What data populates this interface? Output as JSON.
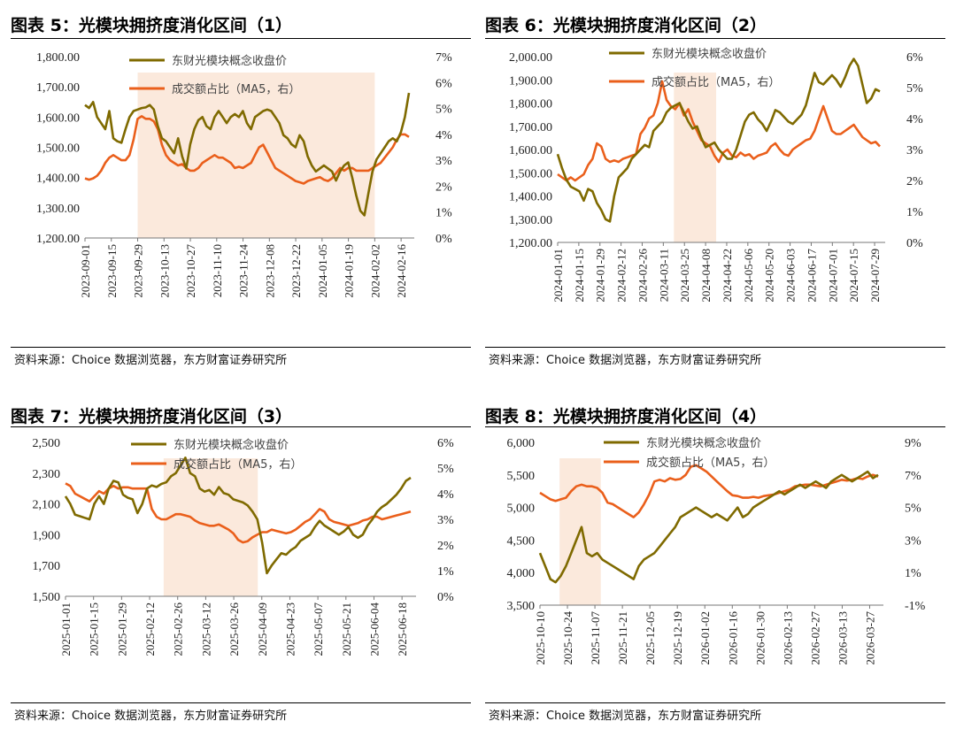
{
  "source": "资料来源：Choice 数据浏览器，东方财富证券研究所",
  "legend": {
    "price": "东财光模块概念收盘价",
    "turnover": "成交额占比（MA5，右）"
  },
  "colors": {
    "price": "#7f6a00",
    "turnover": "#ea5f1b",
    "shade": "#fbe9dc"
  },
  "chart_data": [
    {
      "type": "line",
      "title": "图表 5：光模块拥挤度消化区间（1）",
      "xlabels": [
        "2023-09-01",
        "2023-09-15",
        "2023-09-29",
        "2023-10-13",
        "2023-10-27",
        "2023-11-10",
        "2023-11-24",
        "2023-12-08",
        "2023-12-22",
        "2024-01-05",
        "2024-01-19",
        "2024-02-02",
        "2024-02-16"
      ],
      "ylim": [
        1200,
        1800
      ],
      "yticks": [
        "1,200.00",
        "1,300.00",
        "1,400.00",
        "1,500.00",
        "1,600.00",
        "1,700.00",
        "1,800.00"
      ],
      "y2lim": [
        0,
        7
      ],
      "y2ticks": [
        "0%",
        "1%",
        "2%",
        "3%",
        "4%",
        "5%",
        "6%",
        "7%"
      ],
      "shade": [
        "2023-09-29",
        "2024-02-02"
      ],
      "series": [
        {
          "name": "东财光模块概念收盘价",
          "axis": "left",
          "values": [
            1640,
            1630,
            1650,
            1600,
            1580,
            1560,
            1620,
            1530,
            1520,
            1515,
            1560,
            1600,
            1620,
            1625,
            1630,
            1632,
            1640,
            1625,
            1570,
            1530,
            1520,
            1500,
            1480,
            1530,
            1470,
            1430,
            1510,
            1560,
            1590,
            1600,
            1570,
            1560,
            1600,
            1620,
            1600,
            1580,
            1600,
            1610,
            1600,
            1620,
            1580,
            1560,
            1600,
            1610,
            1620,
            1625,
            1620,
            1600,
            1580,
            1540,
            1530,
            1510,
            1500,
            1540,
            1520,
            1470,
            1440,
            1420,
            1430,
            1440,
            1430,
            1420,
            1390,
            1420,
            1440,
            1450,
            1400,
            1340,
            1290,
            1275,
            1350,
            1420,
            1460,
            1480,
            1500,
            1520,
            1530,
            1520,
            1550,
            1600,
            1680
          ]
        },
        {
          "name": "成交额占比（MA5，右）",
          "axis": "right",
          "values": [
            2.3,
            2.25,
            2.3,
            2.4,
            2.6,
            2.9,
            3.1,
            3.2,
            3.1,
            3.0,
            3.0,
            3.2,
            3.8,
            4.6,
            4.7,
            4.6,
            4.6,
            4.5,
            4.2,
            3.6,
            3.2,
            3.0,
            2.9,
            2.8,
            2.85,
            2.7,
            2.6,
            2.6,
            2.7,
            2.9,
            3.0,
            3.1,
            3.2,
            3.1,
            3.1,
            3.0,
            2.9,
            2.7,
            2.75,
            2.7,
            2.8,
            2.9,
            3.2,
            3.5,
            3.6,
            3.3,
            3.0,
            2.7,
            2.6,
            2.5,
            2.4,
            2.3,
            2.2,
            2.15,
            2.1,
            2.2,
            2.25,
            2.3,
            2.35,
            2.25,
            2.2,
            2.3,
            2.5,
            2.7,
            2.6,
            2.7,
            2.7,
            2.6,
            2.6,
            2.6,
            2.6,
            2.7,
            2.8,
            2.9,
            3.1,
            3.3,
            3.5,
            3.8,
            4.0,
            4.0,
            3.9
          ]
        }
      ]
    },
    {
      "type": "line",
      "title": "图表 6：光模块拥挤度消化区间（2）",
      "xlabels": [
        "2024-01-01",
        "2024-01-15",
        "2024-01-29",
        "2024-02-12",
        "2024-02-26",
        "2024-03-11",
        "2024-03-25",
        "2024-04-08",
        "2024-04-22",
        "2024-05-06",
        "2024-05-20",
        "2024-06-03",
        "2024-06-17",
        "2024-07-01",
        "2024-07-15",
        "2024-07-29"
      ],
      "ylim": [
        1200,
        2000
      ],
      "yticks": [
        "1,200.00",
        "1,300.00",
        "1,400.00",
        "1,500.00",
        "1,600.00",
        "1,700.00",
        "1,800.00",
        "1,900.00",
        "2,000.00"
      ],
      "y2lim": [
        0,
        6
      ],
      "y2ticks": [
        "0%",
        "1%",
        "2%",
        "3%",
        "4%",
        "5%",
        "6%"
      ],
      "shade": [
        "2024-03-18",
        "2024-04-15"
      ],
      "series": [
        {
          "name": "东财光模块概念收盘价",
          "axis": "left",
          "values": [
            1580,
            1520,
            1470,
            1440,
            1430,
            1420,
            1380,
            1430,
            1420,
            1370,
            1340,
            1300,
            1290,
            1400,
            1480,
            1500,
            1520,
            1560,
            1580,
            1600,
            1620,
            1610,
            1680,
            1700,
            1720,
            1760,
            1780,
            1790,
            1800,
            1760,
            1720,
            1690,
            1700,
            1650,
            1610,
            1620,
            1630,
            1600,
            1580,
            1560,
            1560,
            1600,
            1660,
            1720,
            1750,
            1760,
            1730,
            1710,
            1680,
            1720,
            1770,
            1760,
            1740,
            1720,
            1710,
            1730,
            1750,
            1790,
            1860,
            1930,
            1890,
            1880,
            1900,
            1920,
            1900,
            1870,
            1910,
            1960,
            1990,
            1960,
            1880,
            1800,
            1820,
            1860,
            1850
          ]
        },
        {
          "name": "成交额占比（MA5，右）",
          "axis": "right",
          "values": [
            2.2,
            2.1,
            2.0,
            2.1,
            2.0,
            2.1,
            2.2,
            2.5,
            2.7,
            3.2,
            3.1,
            2.7,
            2.6,
            2.65,
            2.6,
            2.7,
            2.75,
            2.8,
            2.85,
            3.5,
            3.7,
            4.0,
            4.1,
            4.5,
            5.2,
            4.6,
            4.4,
            4.3,
            4.5,
            4.1,
            4.3,
            3.9,
            3.6,
            3.3,
            3.2,
            3.1,
            2.8,
            2.6,
            2.9,
            3.0,
            2.8,
            2.75,
            2.9,
            2.8,
            2.85,
            2.7,
            2.8,
            2.85,
            2.9,
            3.1,
            3.2,
            3.0,
            2.85,
            2.8,
            3.0,
            3.1,
            3.2,
            3.3,
            3.35,
            3.6,
            4.0,
            4.4,
            4.0,
            3.6,
            3.5,
            3.5,
            3.6,
            3.7,
            3.8,
            3.6,
            3.4,
            3.3,
            3.2,
            3.25,
            3.1
          ]
        }
      ]
    },
    {
      "type": "line",
      "title": "图表 7：光模块拥挤度消化区间（3）",
      "xlabels": [
        "2025-01-01",
        "2025-01-15",
        "2025-01-29",
        "2025-02-12",
        "2025-02-26",
        "2025-03-12",
        "2025-03-26",
        "2025-04-09",
        "2025-04-23",
        "2025-05-07",
        "2025-05-21",
        "2025-06-04",
        "2025-06-18"
      ],
      "ylim": [
        1500,
        2500
      ],
      "yticks": [
        "1,500",
        "1,700",
        "1,900",
        "2,100",
        "2,300",
        "2,500"
      ],
      "y2lim": [
        0,
        6
      ],
      "y2ticks": [
        "0%",
        "1%",
        "2%",
        "3%",
        "4%",
        "5%",
        "6%"
      ],
      "shade": [
        "2025-02-19",
        "2025-04-07"
      ],
      "series": [
        {
          "name": "东财光模块概念收盘价",
          "axis": "left",
          "values": [
            2150,
            2100,
            2030,
            2020,
            2010,
            2000,
            2100,
            2150,
            2100,
            2200,
            2250,
            2240,
            2160,
            2140,
            2130,
            2040,
            2100,
            2200,
            2220,
            2210,
            2230,
            2240,
            2280,
            2300,
            2350,
            2400,
            2300,
            2280,
            2200,
            2180,
            2190,
            2160,
            2210,
            2170,
            2160,
            2130,
            2120,
            2110,
            2090,
            2050,
            2000,
            1850,
            1650,
            1700,
            1740,
            1780,
            1770,
            1800,
            1820,
            1860,
            1880,
            1900,
            1950,
            1990,
            1960,
            1940,
            1920,
            1900,
            1920,
            1950,
            1900,
            1880,
            1900,
            1960,
            2000,
            2050,
            2080,
            2100,
            2130,
            2160,
            2200,
            2250,
            2270
          ]
        },
        {
          "name": "成交额占比（MA5，右）",
          "axis": "right",
          "values": [
            4.4,
            4.3,
            4.0,
            3.9,
            3.8,
            3.7,
            3.9,
            4.1,
            4.0,
            4.2,
            4.3,
            4.2,
            4.25,
            4.25,
            4.2,
            4.2,
            4.2,
            4.2,
            3.4,
            3.1,
            3.0,
            3.0,
            3.1,
            3.2,
            3.2,
            3.15,
            3.1,
            2.95,
            2.85,
            2.8,
            2.75,
            2.75,
            2.8,
            2.7,
            2.6,
            2.45,
            2.2,
            2.1,
            2.15,
            2.3,
            2.4,
            2.5,
            2.5,
            2.6,
            2.55,
            2.5,
            2.45,
            2.5,
            2.6,
            2.75,
            2.9,
            3.0,
            3.2,
            3.4,
            3.3,
            3.0,
            2.9,
            2.85,
            2.8,
            2.75,
            2.8,
            2.85,
            2.95,
            3.0,
            3.1,
            3.1,
            3.0,
            3.05,
            3.1,
            3.15,
            3.2,
            3.25,
            3.3
          ]
        }
      ]
    },
    {
      "type": "line",
      "title": "图表 8：光模块拥挤度消化区间（4）",
      "xlabels": [
        "2025-10-10",
        "2025-10-24",
        "2025-11-07",
        "2025-11-21",
        "2025-12-05",
        "2025-12-19",
        "2026-01-02",
        "2026-01-16",
        "2026-01-30",
        "2026-02-13",
        "2026-02-27",
        "2026-03-13",
        "2026-03-27"
      ],
      "ylim": [
        3500,
        6000
      ],
      "yticks": [
        "3,500",
        "4,000",
        "4,500",
        "5,000",
        "5,500",
        "6,000"
      ],
      "y2lim": [
        -1,
        9
      ],
      "y2ticks": [
        "-1%",
        "1%",
        "3%",
        "5%",
        "7%",
        "9%"
      ],
      "shade": [
        "2025-10-20",
        "2025-11-10"
      ],
      "series": [
        {
          "name": "东财光模块概念收盘价",
          "axis": "left",
          "values": [
            4300,
            4100,
            3900,
            3850,
            3950,
            4100,
            4300,
            4500,
            4700,
            4300,
            4250,
            4300,
            4200,
            4150,
            4100,
            4050,
            4000,
            3950,
            3900,
            4100,
            4200,
            4250,
            4300,
            4400,
            4500,
            4600,
            4700,
            4850,
            4900,
            4950,
            5000,
            4950,
            4900,
            4850,
            4900,
            4850,
            4800,
            4900,
            5000,
            4850,
            4900,
            5000,
            5050,
            5100,
            5150,
            5200,
            5250,
            5200,
            5250,
            5300,
            5350,
            5300,
            5350,
            5400,
            5350,
            5300,
            5400,
            5450,
            5500,
            5450,
            5400,
            5450,
            5500,
            5550,
            5450,
            5500
          ]
        },
        {
          "name": "成交额占比（MA5，右）",
          "axis": "right",
          "values": [
            5.9,
            5.7,
            5.5,
            5.4,
            5.5,
            5.6,
            6.0,
            6.3,
            6.4,
            6.3,
            6.3,
            6.2,
            5.9,
            5.3,
            5.2,
            5.0,
            4.8,
            4.6,
            4.4,
            4.7,
            5.2,
            5.8,
            6.6,
            6.7,
            6.6,
            6.8,
            6.7,
            6.75,
            7.0,
            7.5,
            7.6,
            7.4,
            7.2,
            6.9,
            6.6,
            6.3,
            6.0,
            5.75,
            5.7,
            5.6,
            5.6,
            5.65,
            5.6,
            5.7,
            5.75,
            5.8,
            5.9,
            6.0,
            6.1,
            6.3,
            6.35,
            6.4,
            6.4,
            6.35,
            6.3,
            6.4,
            6.5,
            6.6,
            6.7,
            6.65,
            6.7,
            6.8,
            6.75,
            6.9,
            7.0,
            6.9
          ]
        }
      ]
    }
  ]
}
